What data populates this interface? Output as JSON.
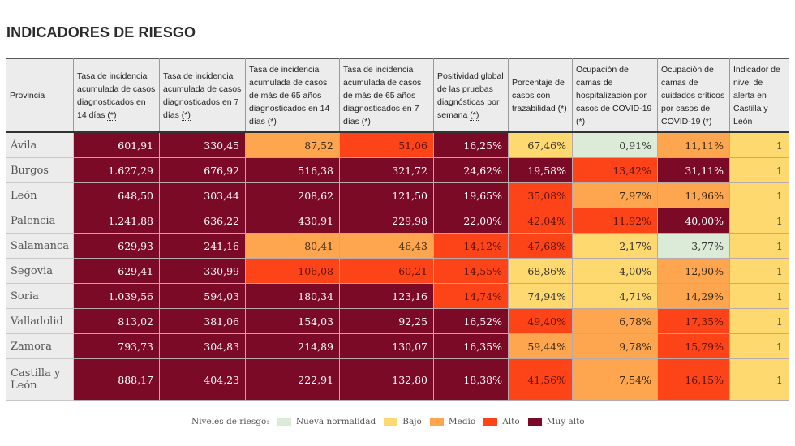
{
  "page": {
    "title": "INDICADORES DE RIESGO"
  },
  "colors": {
    "nueva_normalidad": "#dcebd7",
    "bajo": "#fed96f",
    "medio": "#fda64f",
    "alto": "#fc4418",
    "muy_alto": "#7b0a27"
  },
  "table": {
    "headers": [
      {
        "text": "Provincia",
        "note": ""
      },
      {
        "text": "Tasa de incidencia acumulada de casos diagnosticados en 14 días ",
        "note": "(*)"
      },
      {
        "text": "Tasa de incidencia acumulada de casos diagnosticados en 7 días ",
        "note": "(*)"
      },
      {
        "text": "Tasa de incidencia acumulada de casos de más de 65 años diagnosticados en 14 días ",
        "note": "(*)"
      },
      {
        "text": "Tasa de incidencia acumulada de casos de más de 65 años diagnosticados en 7 días ",
        "note": "(*)"
      },
      {
        "text": "Positividad global de las pruebas diagnósticas por semana ",
        "note": "(*)"
      },
      {
        "text": "Porcentaje de casos con trazabilidad ",
        "note": "(*)"
      },
      {
        "text": "Ocupación de camas de hospitalización por casos de COVID-19 ",
        "note": "(*)"
      },
      {
        "text": "Ocupación de camas de cuidados críticos por casos de COVID-19 ",
        "note": "(*)"
      },
      {
        "text": "Indicador de nivel de alerta en Castilla y León",
        "note": ""
      }
    ],
    "rows": [
      {
        "provincia": "Ávila",
        "cells": [
          {
            "v": "601,91",
            "lvl": "muy"
          },
          {
            "v": "330,45",
            "lvl": "muy"
          },
          {
            "v": "87,52",
            "lvl": "medio"
          },
          {
            "v": "51,06",
            "lvl": "alto"
          },
          {
            "v": "16,25%",
            "lvl": "muy"
          },
          {
            "v": "67,46%",
            "lvl": "bajo"
          },
          {
            "v": "0,91%",
            "lvl": "nn"
          },
          {
            "v": "11,11%",
            "lvl": "medio"
          },
          {
            "v": "1",
            "lvl": "bajo"
          }
        ]
      },
      {
        "provincia": "Burgos",
        "cells": [
          {
            "v": "1.627,29",
            "lvl": "muy"
          },
          {
            "v": "676,92",
            "lvl": "muy"
          },
          {
            "v": "516,38",
            "lvl": "muy"
          },
          {
            "v": "321,72",
            "lvl": "muy"
          },
          {
            "v": "24,62%",
            "lvl": "muy"
          },
          {
            "v": "19,58%",
            "lvl": "muy"
          },
          {
            "v": "13,42%",
            "lvl": "alto"
          },
          {
            "v": "31,11%",
            "lvl": "muy"
          },
          {
            "v": "1",
            "lvl": "bajo"
          }
        ]
      },
      {
        "provincia": "León",
        "cells": [
          {
            "v": "648,50",
            "lvl": "muy"
          },
          {
            "v": "303,44",
            "lvl": "muy"
          },
          {
            "v": "208,62",
            "lvl": "muy"
          },
          {
            "v": "121,50",
            "lvl": "muy"
          },
          {
            "v": "19,65%",
            "lvl": "muy"
          },
          {
            "v": "35,08%",
            "lvl": "alto"
          },
          {
            "v": "7,97%",
            "lvl": "medio"
          },
          {
            "v": "11,96%",
            "lvl": "medio"
          },
          {
            "v": "1",
            "lvl": "bajo"
          }
        ]
      },
      {
        "provincia": "Palencia",
        "cells": [
          {
            "v": "1.241,88",
            "lvl": "muy"
          },
          {
            "v": "636,22",
            "lvl": "muy"
          },
          {
            "v": "430,91",
            "lvl": "muy"
          },
          {
            "v": "229,98",
            "lvl": "muy"
          },
          {
            "v": "22,00%",
            "lvl": "muy"
          },
          {
            "v": "42,04%",
            "lvl": "alto"
          },
          {
            "v": "11,92%",
            "lvl": "alto"
          },
          {
            "v": "40,00%",
            "lvl": "muy"
          },
          {
            "v": "1",
            "lvl": "bajo"
          }
        ]
      },
      {
        "provincia": "Salamanca",
        "cells": [
          {
            "v": "629,93",
            "lvl": "muy"
          },
          {
            "v": "241,16",
            "lvl": "muy"
          },
          {
            "v": "80,41",
            "lvl": "medio"
          },
          {
            "v": "46,43",
            "lvl": "medio"
          },
          {
            "v": "14,12%",
            "lvl": "alto"
          },
          {
            "v": "47,68%",
            "lvl": "alto"
          },
          {
            "v": "2,17%",
            "lvl": "bajo"
          },
          {
            "v": "3,77%",
            "lvl": "nn"
          },
          {
            "v": "1",
            "lvl": "bajo"
          }
        ]
      },
      {
        "provincia": "Segovia",
        "cells": [
          {
            "v": "629,41",
            "lvl": "muy"
          },
          {
            "v": "330,99",
            "lvl": "muy"
          },
          {
            "v": "106,08",
            "lvl": "alto"
          },
          {
            "v": "60,21",
            "lvl": "alto"
          },
          {
            "v": "14,55%",
            "lvl": "alto"
          },
          {
            "v": "68,86%",
            "lvl": "bajo"
          },
          {
            "v": "4,00%",
            "lvl": "bajo"
          },
          {
            "v": "12,90%",
            "lvl": "medio"
          },
          {
            "v": "1",
            "lvl": "bajo"
          }
        ]
      },
      {
        "provincia": "Soria",
        "cells": [
          {
            "v": "1.039,56",
            "lvl": "muy"
          },
          {
            "v": "594,03",
            "lvl": "muy"
          },
          {
            "v": "180,34",
            "lvl": "muy"
          },
          {
            "v": "123,16",
            "lvl": "muy"
          },
          {
            "v": "14,74%",
            "lvl": "alto"
          },
          {
            "v": "74,94%",
            "lvl": "bajo"
          },
          {
            "v": "4,71%",
            "lvl": "bajo"
          },
          {
            "v": "14,29%",
            "lvl": "medio"
          },
          {
            "v": "1",
            "lvl": "bajo"
          }
        ]
      },
      {
        "provincia": "Valladolid",
        "cells": [
          {
            "v": "813,02",
            "lvl": "muy"
          },
          {
            "v": "381,06",
            "lvl": "muy"
          },
          {
            "v": "154,03",
            "lvl": "muy"
          },
          {
            "v": "92,25",
            "lvl": "muy"
          },
          {
            "v": "16,52%",
            "lvl": "muy"
          },
          {
            "v": "49,40%",
            "lvl": "alto"
          },
          {
            "v": "6,78%",
            "lvl": "medio"
          },
          {
            "v": "17,35%",
            "lvl": "alto"
          },
          {
            "v": "1",
            "lvl": "bajo"
          }
        ]
      },
      {
        "provincia": "Zamora",
        "cells": [
          {
            "v": "793,73",
            "lvl": "muy"
          },
          {
            "v": "304,83",
            "lvl": "muy"
          },
          {
            "v": "214,89",
            "lvl": "muy"
          },
          {
            "v": "130,07",
            "lvl": "muy"
          },
          {
            "v": "16,35%",
            "lvl": "muy"
          },
          {
            "v": "59,44%",
            "lvl": "medio"
          },
          {
            "v": "9,78%",
            "lvl": "medio"
          },
          {
            "v": "15,79%",
            "lvl": "alto"
          },
          {
            "v": "1",
            "lvl": "bajo"
          }
        ]
      },
      {
        "provincia": "Castilla y León",
        "cells": [
          {
            "v": "888,17",
            "lvl": "muy"
          },
          {
            "v": "404,23",
            "lvl": "muy"
          },
          {
            "v": "222,91",
            "lvl": "muy"
          },
          {
            "v": "132,80",
            "lvl": "muy"
          },
          {
            "v": "18,38%",
            "lvl": "muy"
          },
          {
            "v": "41,56%",
            "lvl": "alto"
          },
          {
            "v": "7,54%",
            "lvl": "medio"
          },
          {
            "v": "16,15%",
            "lvl": "alto"
          },
          {
            "v": "1",
            "lvl": "bajo"
          }
        ]
      }
    ]
  },
  "legend": {
    "label": "Niveles de riesgo:",
    "items": [
      {
        "key": "nn",
        "label": "Nueva normalidad"
      },
      {
        "key": "bajo",
        "label": "Bajo"
      },
      {
        "key": "medio",
        "label": "Medio"
      },
      {
        "key": "alto",
        "label": "Alto"
      },
      {
        "key": "muy",
        "label": "Muy alto"
      }
    ]
  }
}
